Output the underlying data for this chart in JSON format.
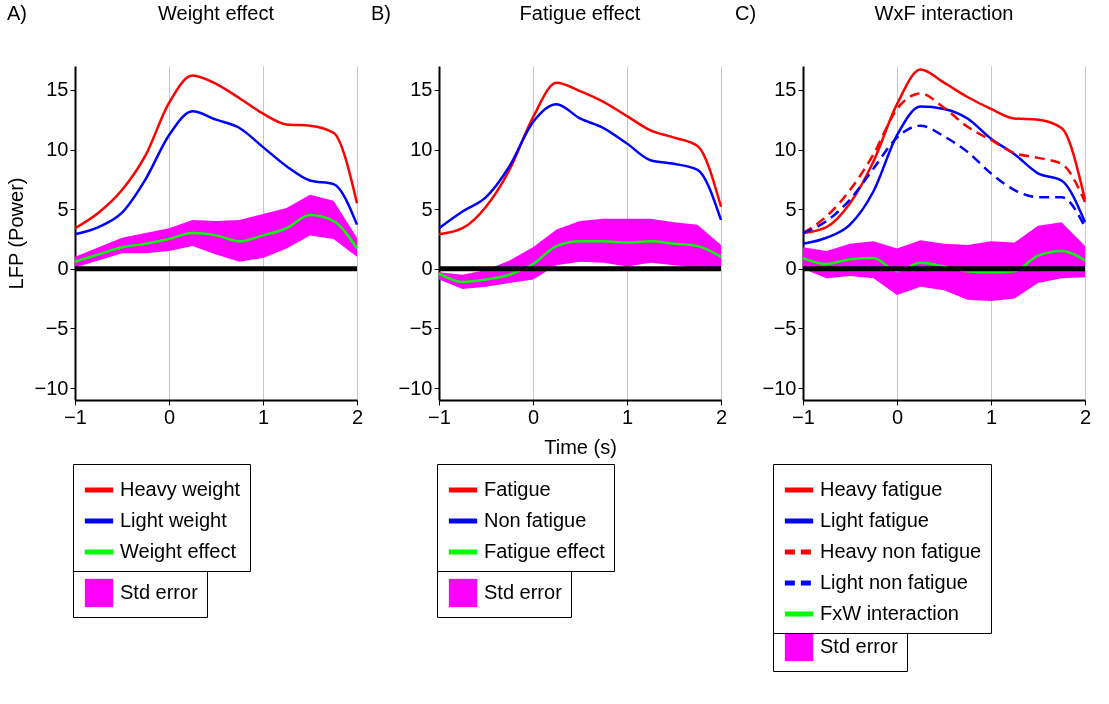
{
  "chart_data": [
    {
      "type": "line",
      "title": "Weight effect",
      "ylabel": "LFP (Power)",
      "annotations": [
        "A)"
      ],
      "x": [
        -1,
        -0.75,
        -0.5,
        -0.25,
        0,
        0.25,
        0.5,
        0.75,
        1,
        1.25,
        1.5,
        1.75,
        2
      ],
      "xlim": [
        -1,
        2
      ],
      "xticks": [
        -1,
        0,
        1,
        2
      ],
      "ylim": [
        -11,
        17
      ],
      "yticks": [
        -10,
        -5,
        0,
        5,
        10,
        15
      ],
      "grid": "x",
      "legend": "bottom",
      "ref_lines": [
        {
          "axis": "y",
          "value": 0,
          "color": "#000000"
        }
      ],
      "series": [
        {
          "name": "Std error",
          "type": "area",
          "color": "#ff00ff",
          "values": [
            null,
            null,
            null,
            null,
            null,
            null,
            null,
            null,
            null,
            null,
            null,
            null,
            null
          ],
          "lower": [
            0.1,
            0.7,
            1.3,
            1.3,
            1.5,
            1.9,
            1.2,
            0.6,
            0.9,
            1.7,
            2.8,
            2.5,
            1.0
          ],
          "upper": [
            1.0,
            1.8,
            2.6,
            3.0,
            3.4,
            4.1,
            4.0,
            4.1,
            4.6,
            5.1,
            6.2,
            5.7,
            2.6
          ]
        },
        {
          "name": "Heavy weight",
          "color": "#ff0000",
          "values": [
            3.4,
            4.7,
            6.6,
            9.5,
            13.9,
            16.2,
            15.5,
            14.3,
            13.0,
            12.1,
            12.0,
            11.4,
            5.5
          ]
        },
        {
          "name": "Light weight",
          "color": "#0000ff",
          "values": [
            2.9,
            3.5,
            4.7,
            7.5,
            11.2,
            13.2,
            12.5,
            11.8,
            10.2,
            8.6,
            7.4,
            7.1,
            3.7
          ]
        },
        {
          "name": "Weight effect",
          "color": "#00ff00",
          "values": [
            0.6,
            1.2,
            1.8,
            2.1,
            2.5,
            3.0,
            2.8,
            2.3,
            2.8,
            3.4,
            4.5,
            4.0,
            1.7
          ]
        }
      ]
    },
    {
      "type": "line",
      "title": "Fatigue effect",
      "xlabel": "Time (s)",
      "annotations": [
        "B)"
      ],
      "x": [
        -1,
        -0.75,
        -0.5,
        -0.25,
        0,
        0.25,
        0.5,
        0.75,
        1,
        1.25,
        1.5,
        1.75,
        2
      ],
      "xlim": [
        -1,
        2
      ],
      "xticks": [
        -1,
        0,
        1,
        2
      ],
      "ylim": [
        -11,
        17
      ],
      "yticks": [
        -10,
        -5,
        0,
        5,
        10,
        15
      ],
      "grid": "x",
      "legend": "bottom",
      "ref_lines": [
        {
          "axis": "y",
          "value": 0,
          "color": "#000000"
        }
      ],
      "series": [
        {
          "name": "Std error",
          "type": "area",
          "color": "#ff00ff",
          "values": [
            null,
            null,
            null,
            null,
            null,
            null,
            null,
            null,
            null,
            null,
            null,
            null,
            null
          ],
          "lower": [
            -0.9,
            -1.7,
            -1.5,
            -1.2,
            -0.9,
            0.3,
            0.6,
            0.5,
            0.2,
            0.5,
            0.3,
            0.1,
            0.1
          ],
          "upper": [
            -0.3,
            -0.5,
            -0.1,
            0.7,
            1.8,
            3.3,
            4.0,
            4.2,
            4.2,
            4.2,
            3.9,
            3.7,
            2.0
          ]
        },
        {
          "name": "Fatigue",
          "color": "#ff0000",
          "values": [
            2.9,
            3.4,
            5.2,
            8.3,
            12.7,
            15.6,
            14.9,
            14.0,
            12.8,
            11.6,
            11.0,
            10.3,
            5.2
          ]
        },
        {
          "name": "Non fatigue",
          "color": "#0000ff",
          "values": [
            3.4,
            4.8,
            6.0,
            8.6,
            12.3,
            13.8,
            12.6,
            11.8,
            10.5,
            9.1,
            8.8,
            8.3,
            4.1
          ]
        },
        {
          "name": "Fatigue effect",
          "color": "#00ff00",
          "values": [
            -0.4,
            -1.1,
            -0.9,
            -0.5,
            0.4,
            1.9,
            2.3,
            2.3,
            2.2,
            2.3,
            2.1,
            1.9,
            1.0
          ]
        }
      ]
    },
    {
      "type": "line",
      "title": "WxF interaction",
      "annotations": [
        "C)"
      ],
      "x": [
        -1,
        -0.75,
        -0.5,
        -0.25,
        0,
        0.25,
        0.5,
        0.75,
        1,
        1.25,
        1.5,
        1.75,
        2
      ],
      "xlim": [
        -1,
        2
      ],
      "xticks": [
        -1,
        0,
        1,
        2
      ],
      "ylim": [
        -11,
        17
      ],
      "yticks": [
        -10,
        -5,
        0,
        5,
        10,
        15
      ],
      "grid": "x",
      "legend": "bottom",
      "ref_lines": [
        {
          "axis": "y",
          "value": 0,
          "color": "#000000"
        }
      ],
      "series": [
        {
          "name": "Std error",
          "type": "area",
          "color": "#ff00ff",
          "values": [
            null,
            null,
            null,
            null,
            null,
            null,
            null,
            null,
            null,
            null,
            null,
            null,
            null
          ],
          "lower": [
            0,
            -0.8,
            -0.6,
            -0.8,
            -2.2,
            -1.5,
            -1.8,
            -2.6,
            -2.7,
            -2.5,
            -1.2,
            -0.8,
            -0.7
          ],
          "upper": [
            1.8,
            1.5,
            2.1,
            2.3,
            1.7,
            2.4,
            2.1,
            2.0,
            2.3,
            2.2,
            3.6,
            3.9,
            1.9
          ]
        },
        {
          "name": "Heavy fatigue",
          "color": "#ff0000",
          "values": [
            3.0,
            3.5,
            5.5,
            9.0,
            13.8,
            16.7,
            15.6,
            14.4,
            13.4,
            12.6,
            12.5,
            11.8,
            5.8
          ]
        },
        {
          "name": "Light fatigue",
          "color": "#0000ff",
          "values": [
            2.1,
            2.6,
            3.7,
            6.5,
            11.2,
            13.6,
            13.4,
            12.6,
            10.9,
            9.6,
            8.0,
            7.4,
            3.9
          ]
        },
        {
          "name": "Heavy non fatigue",
          "color": "#ff0000",
          "line_style": "dashed",
          "values": [
            3.0,
            4.4,
            6.6,
            9.6,
            13.4,
            14.7,
            13.5,
            11.9,
            10.8,
            9.7,
            9.3,
            8.8,
            5.6
          ]
        },
        {
          "name": "Light non fatigue",
          "color": "#0000ff",
          "line_style": "dashed",
          "values": [
            3.0,
            4.0,
            5.8,
            8.4,
            11.0,
            12.0,
            11.1,
            9.8,
            8.0,
            6.6,
            6.0,
            6.0,
            3.5
          ]
        },
        {
          "name": "FxW interaction",
          "color": "#00ff00",
          "values": [
            0.9,
            0.4,
            0.8,
            0.9,
            -0.2,
            0.5,
            0.2,
            -0.2,
            -0.3,
            -0.2,
            1.1,
            1.5,
            0.7
          ]
        }
      ]
    }
  ]
}
